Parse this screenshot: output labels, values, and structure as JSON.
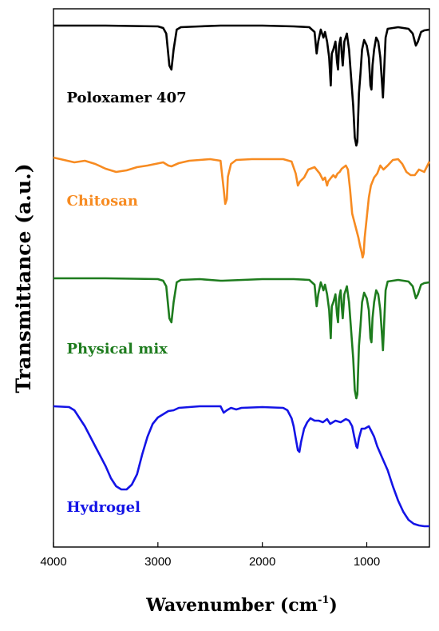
{
  "chart_data": {
    "type": "line",
    "title": "",
    "xlabel": "Wavenumber (cm",
    "xlabel_sup": "-1",
    "xlabel_close": ")",
    "ylabel": "Transmittance (a.u.)",
    "xlim": [
      4000,
      400
    ],
    "x_reversed": true,
    "y_ticks_shown": false,
    "grid": false,
    "legend": "none",
    "x_ticks": [
      {
        "value": 4000,
        "label": "4000"
      },
      {
        "value": 3000,
        "label": "3000"
      },
      {
        "value": 2000,
        "label": "2000"
      },
      {
        "value": 1000,
        "label": "1000"
      }
    ],
    "series": [
      {
        "name": "Poloxamer 407",
        "color": "#000000",
        "label_x": 3950,
        "points": [
          [
            4000,
            0
          ],
          [
            3500,
            0
          ],
          [
            3000,
            -1
          ],
          [
            2950,
            -3
          ],
          [
            2920,
            -10
          ],
          [
            2890,
            -50
          ],
          [
            2870,
            -55
          ],
          [
            2850,
            -30
          ],
          [
            2820,
            -5
          ],
          [
            2780,
            -2
          ],
          [
            2600,
            -1
          ],
          [
            2400,
            0
          ],
          [
            2000,
            0
          ],
          [
            1700,
            -1
          ],
          [
            1550,
            -2
          ],
          [
            1500,
            -8
          ],
          [
            1480,
            -35
          ],
          [
            1465,
            -20
          ],
          [
            1440,
            -5
          ],
          [
            1415,
            -15
          ],
          [
            1400,
            -8
          ],
          [
            1380,
            -20
          ],
          [
            1360,
            -40
          ],
          [
            1345,
            -75
          ],
          [
            1335,
            -35
          ],
          [
            1320,
            -30
          ],
          [
            1300,
            -20
          ],
          [
            1285,
            -45
          ],
          [
            1275,
            -55
          ],
          [
            1265,
            -25
          ],
          [
            1250,
            -15
          ],
          [
            1240,
            -35
          ],
          [
            1230,
            -50
          ],
          [
            1215,
            -20
          ],
          [
            1190,
            -10
          ],
          [
            1170,
            -30
          ],
          [
            1150,
            -65
          ],
          [
            1130,
            -100
          ],
          [
            1115,
            -140
          ],
          [
            1100,
            -150
          ],
          [
            1090,
            -145
          ],
          [
            1075,
            -85
          ],
          [
            1060,
            -60
          ],
          [
            1045,
            -30
          ],
          [
            1025,
            -18
          ],
          [
            1000,
            -25
          ],
          [
            980,
            -40
          ],
          [
            965,
            -75
          ],
          [
            955,
            -80
          ],
          [
            945,
            -50
          ],
          [
            930,
            -30
          ],
          [
            910,
            -15
          ],
          [
            890,
            -20
          ],
          [
            870,
            -40
          ],
          [
            855,
            -70
          ],
          [
            845,
            -90
          ],
          [
            835,
            -60
          ],
          [
            820,
            -15
          ],
          [
            800,
            -4
          ],
          [
            700,
            -2
          ],
          [
            600,
            -4
          ],
          [
            560,
            -10
          ],
          [
            530,
            -25
          ],
          [
            510,
            -20
          ],
          [
            480,
            -8
          ],
          [
            450,
            -6
          ],
          [
            400,
            -5
          ]
        ]
      },
      {
        "name": "Chitosan",
        "color": "#f78b21",
        "label_x": 3950,
        "points": [
          [
            4000,
            0
          ],
          [
            3900,
            -3
          ],
          [
            3800,
            -6
          ],
          [
            3700,
            -4
          ],
          [
            3600,
            -8
          ],
          [
            3500,
            -14
          ],
          [
            3400,
            -18
          ],
          [
            3350,
            -17
          ],
          [
            3300,
            -16
          ],
          [
            3200,
            -12
          ],
          [
            3100,
            -10
          ],
          [
            2950,
            -6
          ],
          [
            2900,
            -10
          ],
          [
            2870,
            -11
          ],
          [
            2800,
            -7
          ],
          [
            2700,
            -4
          ],
          [
            2600,
            -3
          ],
          [
            2500,
            -2
          ],
          [
            2400,
            -4
          ],
          [
            2370,
            -40
          ],
          [
            2355,
            -58
          ],
          [
            2340,
            -52
          ],
          [
            2330,
            -24
          ],
          [
            2300,
            -8
          ],
          [
            2250,
            -3
          ],
          [
            2100,
            -2
          ],
          [
            1900,
            -2
          ],
          [
            1800,
            -2
          ],
          [
            1720,
            -5
          ],
          [
            1680,
            -20
          ],
          [
            1660,
            -35
          ],
          [
            1640,
            -30
          ],
          [
            1600,
            -25
          ],
          [
            1560,
            -15
          ],
          [
            1500,
            -12
          ],
          [
            1450,
            -20
          ],
          [
            1420,
            -28
          ],
          [
            1400,
            -25
          ],
          [
            1380,
            -35
          ],
          [
            1370,
            -30
          ],
          [
            1340,
            -25
          ],
          [
            1320,
            -22
          ],
          [
            1300,
            -25
          ],
          [
            1280,
            -20
          ],
          [
            1260,
            -18
          ],
          [
            1240,
            -14
          ],
          [
            1220,
            -12
          ],
          [
            1200,
            -10
          ],
          [
            1180,
            -15
          ],
          [
            1160,
            -40
          ],
          [
            1140,
            -70
          ],
          [
            1120,
            -80
          ],
          [
            1100,
            -90
          ],
          [
            1080,
            -100
          ],
          [
            1065,
            -110
          ],
          [
            1050,
            -118
          ],
          [
            1040,
            -125
          ],
          [
            1030,
            -120
          ],
          [
            1020,
            -100
          ],
          [
            1000,
            -75
          ],
          [
            980,
            -50
          ],
          [
            960,
            -35
          ],
          [
            930,
            -25
          ],
          [
            900,
            -20
          ],
          [
            870,
            -10
          ],
          [
            840,
            -15
          ],
          [
            800,
            -10
          ],
          [
            750,
            -3
          ],
          [
            700,
            -2
          ],
          [
            660,
            -8
          ],
          [
            620,
            -18
          ],
          [
            580,
            -22
          ],
          [
            540,
            -22
          ],
          [
            500,
            -15
          ],
          [
            450,
            -18
          ],
          [
            400,
            -5
          ]
        ]
      },
      {
        "name": "Physical mix",
        "color": "#1e7c1e",
        "label_x": 3950,
        "points": [
          [
            4000,
            0
          ],
          [
            3500,
            0
          ],
          [
            3000,
            -1
          ],
          [
            2950,
            -3
          ],
          [
            2920,
            -10
          ],
          [
            2890,
            -50
          ],
          [
            2870,
            -55
          ],
          [
            2850,
            -30
          ],
          [
            2820,
            -5
          ],
          [
            2780,
            -2
          ],
          [
            2600,
            -1
          ],
          [
            2400,
            -3
          ],
          [
            2380,
            -3
          ],
          [
            2000,
            -1
          ],
          [
            1700,
            -1
          ],
          [
            1550,
            -2
          ],
          [
            1500,
            -8
          ],
          [
            1480,
            -35
          ],
          [
            1465,
            -20
          ],
          [
            1440,
            -5
          ],
          [
            1415,
            -15
          ],
          [
            1400,
            -8
          ],
          [
            1380,
            -20
          ],
          [
            1360,
            -40
          ],
          [
            1345,
            -75
          ],
          [
            1335,
            -35
          ],
          [
            1320,
            -30
          ],
          [
            1300,
            -20
          ],
          [
            1285,
            -45
          ],
          [
            1275,
            -55
          ],
          [
            1265,
            -25
          ],
          [
            1250,
            -15
          ],
          [
            1240,
            -35
          ],
          [
            1230,
            -50
          ],
          [
            1215,
            -20
          ],
          [
            1190,
            -10
          ],
          [
            1170,
            -30
          ],
          [
            1150,
            -65
          ],
          [
            1130,
            -100
          ],
          [
            1115,
            -140
          ],
          [
            1100,
            -150
          ],
          [
            1090,
            -145
          ],
          [
            1075,
            -85
          ],
          [
            1060,
            -60
          ],
          [
            1045,
            -30
          ],
          [
            1025,
            -18
          ],
          [
            1000,
            -25
          ],
          [
            980,
            -40
          ],
          [
            965,
            -75
          ],
          [
            955,
            -80
          ],
          [
            945,
            -50
          ],
          [
            930,
            -30
          ],
          [
            910,
            -15
          ],
          [
            890,
            -20
          ],
          [
            870,
            -40
          ],
          [
            855,
            -70
          ],
          [
            845,
            -90
          ],
          [
            835,
            -60
          ],
          [
            820,
            -15
          ],
          [
            800,
            -4
          ],
          [
            700,
            -2
          ],
          [
            600,
            -4
          ],
          [
            560,
            -10
          ],
          [
            530,
            -25
          ],
          [
            510,
            -20
          ],
          [
            480,
            -8
          ],
          [
            450,
            -6
          ],
          [
            400,
            -5
          ]
        ]
      },
      {
        "name": "Hydrogel",
        "color": "#1414e6",
        "label_x": 3950,
        "points": [
          [
            4000,
            0
          ],
          [
            3850,
            -1
          ],
          [
            3800,
            -5
          ],
          [
            3700,
            -25
          ],
          [
            3600,
            -50
          ],
          [
            3500,
            -75
          ],
          [
            3450,
            -90
          ],
          [
            3400,
            -100
          ],
          [
            3350,
            -104
          ],
          [
            3300,
            -104
          ],
          [
            3250,
            -98
          ],
          [
            3200,
            -85
          ],
          [
            3150,
            -60
          ],
          [
            3100,
            -38
          ],
          [
            3050,
            -22
          ],
          [
            3000,
            -14
          ],
          [
            2950,
            -10
          ],
          [
            2900,
            -6
          ],
          [
            2850,
            -5
          ],
          [
            2800,
            -2
          ],
          [
            2600,
            0
          ],
          [
            2400,
            0
          ],
          [
            2370,
            -8
          ],
          [
            2340,
            -5
          ],
          [
            2300,
            -2
          ],
          [
            2250,
            -4
          ],
          [
            2200,
            -2
          ],
          [
            2000,
            -1
          ],
          [
            1800,
            -2
          ],
          [
            1760,
            -5
          ],
          [
            1720,
            -15
          ],
          [
            1700,
            -25
          ],
          [
            1680,
            -40
          ],
          [
            1660,
            -55
          ],
          [
            1645,
            -57
          ],
          [
            1630,
            -45
          ],
          [
            1600,
            -28
          ],
          [
            1570,
            -20
          ],
          [
            1540,
            -15
          ],
          [
            1500,
            -18
          ],
          [
            1460,
            -18
          ],
          [
            1420,
            -20
          ],
          [
            1380,
            -16
          ],
          [
            1350,
            -22
          ],
          [
            1300,
            -18
          ],
          [
            1250,
            -20
          ],
          [
            1200,
            -16
          ],
          [
            1170,
            -18
          ],
          [
            1140,
            -25
          ],
          [
            1120,
            -38
          ],
          [
            1100,
            -50
          ],
          [
            1090,
            -52
          ],
          [
            1075,
            -40
          ],
          [
            1050,
            -28
          ],
          [
            1020,
            -28
          ],
          [
            980,
            -25
          ],
          [
            960,
            -30
          ],
          [
            930,
            -38
          ],
          [
            900,
            -50
          ],
          [
            850,
            -65
          ],
          [
            800,
            -80
          ],
          [
            750,
            -100
          ],
          [
            700,
            -118
          ],
          [
            650,
            -132
          ],
          [
            600,
            -142
          ],
          [
            550,
            -147
          ],
          [
            500,
            -149
          ],
          [
            450,
            -150
          ],
          [
            400,
            -150
          ]
        ]
      }
    ]
  }
}
